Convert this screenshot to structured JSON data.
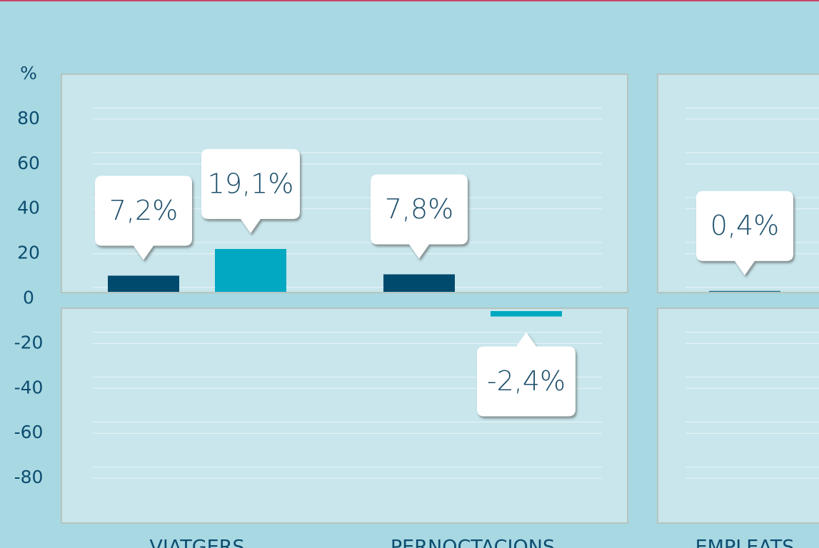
{
  "chart_data": {
    "type": "bar",
    "y_unit": "%",
    "categories": [
      "VIATGERS",
      "PERNOCTACIONS",
      "EMPLEATS"
    ],
    "series": [
      {
        "color": "#004a6e",
        "values": [
          7.2,
          7.8,
          null
        ],
        "value_labels": [
          "7,2%",
          "7,8%",
          null
        ]
      },
      {
        "color": "#00a8c2",
        "values": [
          19.1,
          -2.4,
          null
        ],
        "value_labels": [
          "19,1%",
          "-2,4%",
          null
        ]
      },
      {
        "color": "#1d6c84",
        "values": [
          null,
          null,
          0.4
        ],
        "value_labels": [
          null,
          null,
          "0,4%"
        ]
      }
    ],
    "ylim": [
      -100,
      100
    ],
    "yticks": [
      80,
      60,
      40,
      20,
      0,
      -20,
      -40,
      -60,
      -80
    ],
    "grid": true
  }
}
